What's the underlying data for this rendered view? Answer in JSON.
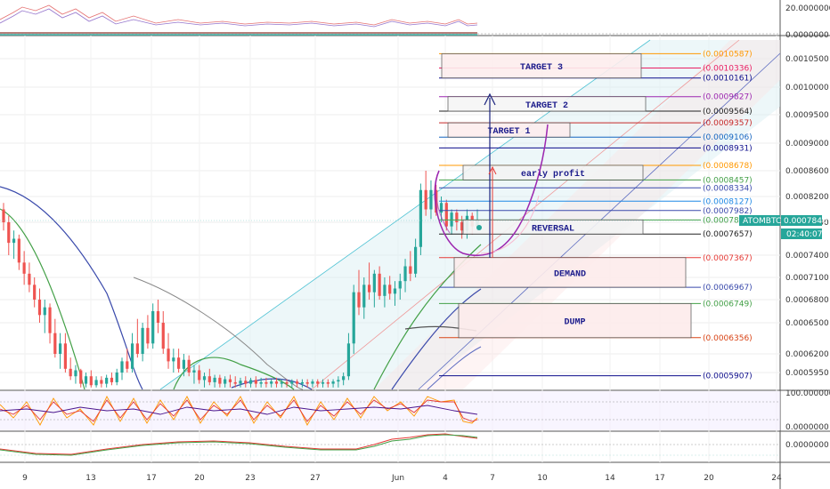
{
  "chart_data": {
    "type": "candlestick",
    "symbol": "ATOMBTC",
    "last_price": "0.0007840",
    "countdown": "02:40:07",
    "x_ticks": [
      "9",
      "13",
      "17",
      "20",
      "23",
      "27",
      "Jun",
      "4",
      "7",
      "10",
      "14",
      "17",
      "20",
      "24"
    ],
    "main_y_ticks": [
      "0.0010500",
      "0.0010000",
      "0.0009500",
      "0.0009000",
      "0.0008600",
      "0.0008200",
      "0.0007800",
      "0.0007400",
      "0.0007100",
      "0.0006800",
      "0.0006500",
      "0.0006200",
      "0.0005950"
    ],
    "main_y_values": [
      0.00105,
      0.001,
      0.00095,
      0.0009,
      0.00086,
      0.00082,
      0.00078,
      0.00074,
      0.00071,
      0.00068,
      0.00065,
      0.00062,
      0.000595
    ],
    "top_panel_ticks": [
      "20.0000000",
      "0.0000000"
    ],
    "stoch_panel_ticks": [
      "100.0000000",
      "0.0000000"
    ],
    "macd_panel_ticks": [
      "0.0000000"
    ],
    "levels": [
      {
        "label": "(0.0010587)",
        "value": 0.0010587,
        "color": "#ff9800"
      },
      {
        "label": "(0.0010336)",
        "value": 0.0010336,
        "color": "#e91e63"
      },
      {
        "label": "(0.0010161)",
        "value": 0.0010161,
        "color": "#0d0d8c"
      },
      {
        "label": "(0.0009827)",
        "value": 0.0009827,
        "color": "#9c27b0"
      },
      {
        "label": "(0.0009564)",
        "value": 0.0009564,
        "color": "#222222"
      },
      {
        "label": "(0.0009357)",
        "value": 0.0009357,
        "color": "#c62828"
      },
      {
        "label": "(0.0009106)",
        "value": 0.0009106,
        "color": "#1565c0"
      },
      {
        "label": "(0.0008931)",
        "value": 0.0008931,
        "color": "#0d0d8c"
      },
      {
        "label": "(0.0008678)",
        "value": 0.0008678,
        "color": "#ff9800"
      },
      {
        "label": "(0.0008457)",
        "value": 0.0008457,
        "color": "#43a047"
      },
      {
        "label": "(0.0008334)",
        "value": 0.0008334,
        "color": "#3949ab"
      },
      {
        "label": "(0.0008127)",
        "value": 0.0008127,
        "color": "#1e88e5"
      },
      {
        "label": "(0.0007982)",
        "value": 0.0007982,
        "color": "#3949ab"
      },
      {
        "label": "(0.0007837)",
        "value": 0.0007837,
        "color": "#43a047"
      },
      {
        "label": "(0.0007657)",
        "value": 0.0007657,
        "color": "#222222"
      },
      {
        "label": "(0.0007367)",
        "value": 0.0007367,
        "color": "#e53935"
      },
      {
        "label": "(0.0006967)",
        "value": 0.0006967,
        "color": "#3949ab"
      },
      {
        "label": "(0.0006749)",
        "value": 0.0006749,
        "color": "#43a047"
      },
      {
        "label": "(0.0006356)",
        "value": 0.0006356,
        "color": "#d84315"
      },
      {
        "label": "(0.0005907)",
        "value": 0.0005907,
        "color": "#0d0d8c"
      }
    ],
    "zones": [
      {
        "label": "TARGET 3",
        "top": 0.0010587,
        "bottom": 0.0010161
      },
      {
        "label": "TARGET 2",
        "top": 0.0009827,
        "bottom": 0.0009564
      },
      {
        "label": "TARGET 1",
        "top": 0.0009357,
        "bottom": 0.0009106
      },
      {
        "label": "early profit",
        "top": 0.0008678,
        "bottom": 0.0008457
      },
      {
        "label": "REVERSAL",
        "top": 0.0007837,
        "bottom": 0.0007657
      },
      {
        "label": "DEMAND",
        "top": 0.0007367,
        "bottom": 0.0006967
      },
      {
        "label": "DUMP",
        "top": 0.0006749,
        "bottom": 0.0006356
      }
    ],
    "candles": [
      [
        0.0008,
        0.00081,
        0.00077,
        0.00078
      ],
      [
        0.00078,
        0.00079,
        0.00074,
        0.000755
      ],
      [
        0.000755,
        0.00077,
        0.000735,
        0.00076
      ],
      [
        0.00076,
        0.000765,
        0.00072,
        0.00073
      ],
      [
        0.00073,
        0.000745,
        0.0007,
        0.000715
      ],
      [
        0.000715,
        0.00073,
        0.00069,
        0.0007
      ],
      [
        0.0007,
        0.00071,
        0.00067,
        0.00068
      ],
      [
        0.00068,
        0.000695,
        0.00065,
        0.00066
      ],
      [
        0.00066,
        0.00068,
        0.00064,
        0.00067
      ],
      [
        0.00067,
        0.000675,
        0.00063,
        0.00064
      ],
      [
        0.00064,
        0.000655,
        0.000615,
        0.00062
      ],
      [
        0.00062,
        0.00064,
        0.0006,
        0.00063
      ],
      [
        0.00063,
        0.00064,
        0.000595,
        0.0006
      ],
      [
        0.0006,
        0.000615,
        0.000585,
        0.00059
      ],
      [
        0.00059,
        0.000605,
        0.00058,
        0.000598
      ],
      [
        0.000598,
        0.0006,
        0.000575,
        0.00058
      ],
      [
        0.00058,
        0.000595,
        0.000575,
        0.00059
      ],
      [
        0.00059,
        0.000598,
        0.000575,
        0.000578
      ],
      [
        0.000578,
        0.00059,
        0.000575,
        0.000585
      ],
      [
        0.000585,
        0.00059,
        0.000575,
        0.00058
      ],
      [
        0.00058,
        0.000592,
        0.000575,
        0.000588
      ],
      [
        0.000588,
        0.000595,
        0.000578,
        0.000582
      ],
      [
        0.000582,
        0.0006,
        0.000578,
        0.000595
      ],
      [
        0.000595,
        0.000615,
        0.000585,
        0.00061
      ],
      [
        0.00061,
        0.000625,
        0.000595,
        0.0006
      ],
      [
        0.0006,
        0.00064,
        0.000595,
        0.00063
      ],
      [
        0.00063,
        0.000655,
        0.000615,
        0.00062
      ],
      [
        0.00062,
        0.00065,
        0.00061,
        0.000645
      ],
      [
        0.000645,
        0.00066,
        0.000625,
        0.00063
      ],
      [
        0.00063,
        0.000675,
        0.000625,
        0.000665
      ],
      [
        0.000665,
        0.00068,
        0.00064,
        0.00065
      ],
      [
        0.00065,
        0.000665,
        0.00062,
        0.000625
      ],
      [
        0.000625,
        0.00064,
        0.0006,
        0.00061
      ],
      [
        0.00061,
        0.000625,
        0.000595,
        0.000615
      ],
      [
        0.000615,
        0.000625,
        0.000595,
        0.0006
      ],
      [
        0.0006,
        0.00062,
        0.00059,
        0.000612
      ],
      [
        0.000612,
        0.000618,
        0.00059,
        0.000595
      ],
      [
        0.000595,
        0.000605,
        0.00058,
        0.000598
      ],
      [
        0.000598,
        0.000605,
        0.00058,
        0.000585
      ],
      [
        0.000585,
        0.000595,
        0.000575,
        0.00059
      ],
      [
        0.00059,
        0.0006,
        0.000578,
        0.000582
      ],
      [
        0.000582,
        0.000592,
        0.000575,
        0.000588
      ],
      [
        0.000588,
        0.000592,
        0.000575,
        0.00058
      ],
      [
        0.00058,
        0.00059,
        0.000575,
        0.000586
      ],
      [
        0.000586,
        0.000592,
        0.000575,
        0.000582
      ],
      [
        0.000582,
        0.00059,
        0.000575,
        0.00058
      ],
      [
        0.00058,
        0.000588,
        0.000575,
        0.000584
      ],
      [
        0.000584,
        0.00059,
        0.000575,
        0.00058
      ],
      [
        0.00058,
        0.000588,
        0.000575,
        0.000585
      ],
      [
        0.000585,
        0.00059,
        0.000575,
        0.00058
      ],
      [
        0.00058,
        0.000588,
        0.000575,
        0.000582
      ],
      [
        0.000582,
        0.000588,
        0.000575,
        0.00058
      ],
      [
        0.00058,
        0.000586,
        0.000575,
        0.000583
      ],
      [
        0.000583,
        0.000588,
        0.000575,
        0.00058
      ],
      [
        0.00058,
        0.000586,
        0.000575,
        0.000582
      ],
      [
        0.000582,
        0.000586,
        0.000575,
        0.00058
      ],
      [
        0.00058,
        0.000586,
        0.000575,
        0.000583
      ],
      [
        0.000583,
        0.000586,
        0.000575,
        0.00058
      ],
      [
        0.00058,
        0.000586,
        0.000575,
        0.000582
      ],
      [
        0.000582,
        0.000586,
        0.000575,
        0.00058
      ],
      [
        0.00058,
        0.000586,
        0.000575,
        0.000583
      ],
      [
        0.000583,
        0.000586,
        0.000575,
        0.00058
      ],
      [
        0.00058,
        0.000586,
        0.000575,
        0.000582
      ],
      [
        0.000582,
        0.000586,
        0.000575,
        0.00058
      ],
      [
        0.00058,
        0.000586,
        0.000575,
        0.000583
      ],
      [
        0.000583,
        0.00059,
        0.000575,
        0.000585
      ],
      [
        0.000585,
        0.000595,
        0.000578,
        0.00059
      ],
      [
        0.00059,
        0.00064,
        0.000585,
        0.00063
      ],
      [
        0.00063,
        0.0007,
        0.00062,
        0.00069
      ],
      [
        0.00069,
        0.00072,
        0.00066,
        0.00067
      ],
      [
        0.00067,
        0.00071,
        0.000655,
        0.0007
      ],
      [
        0.0007,
        0.00073,
        0.00068,
        0.00069
      ],
      [
        0.00069,
        0.00072,
        0.00067,
        0.000715
      ],
      [
        0.000715,
        0.000725,
        0.00068,
        0.000685
      ],
      [
        0.000685,
        0.00071,
        0.00067,
        0.0007
      ],
      [
        0.0007,
        0.000712,
        0.00068,
        0.000688
      ],
      [
        0.000688,
        0.000705,
        0.000672,
        0.000695
      ],
      [
        0.000695,
        0.000715,
        0.00068,
        0.000705
      ],
      [
        0.000705,
        0.000735,
        0.00069,
        0.000725
      ],
      [
        0.000725,
        0.000745,
        0.000705,
        0.000715
      ],
      [
        0.000715,
        0.00076,
        0.00071,
        0.00075
      ],
      [
        0.00075,
        0.00084,
        0.00074,
        0.00083
      ],
      [
        0.00083,
        0.00086,
        0.00079,
        0.0008
      ],
      [
        0.0008,
        0.000845,
        0.000785,
        0.00083
      ],
      [
        0.00083,
        0.000838,
        0.00079,
        0.000795
      ],
      [
        0.000795,
        0.00082,
        0.00078,
        0.00081
      ],
      [
        0.00081,
        0.000815,
        0.00077,
        0.000775
      ],
      [
        0.000775,
        0.0008,
        0.000765,
        0.000795
      ],
      [
        0.000795,
        0.0008,
        0.00077,
        0.00078
      ],
      [
        0.00078,
        0.00079,
        0.00076,
        0.00077
      ],
      [
        0.00077,
        0.0008,
        0.00076,
        0.00079
      ],
      [
        0.00079,
        0.000795,
        0.000765,
        0.000775
      ],
      [
        0.000775,
        0.0008,
        0.00077,
        0.000784
      ]
    ]
  }
}
